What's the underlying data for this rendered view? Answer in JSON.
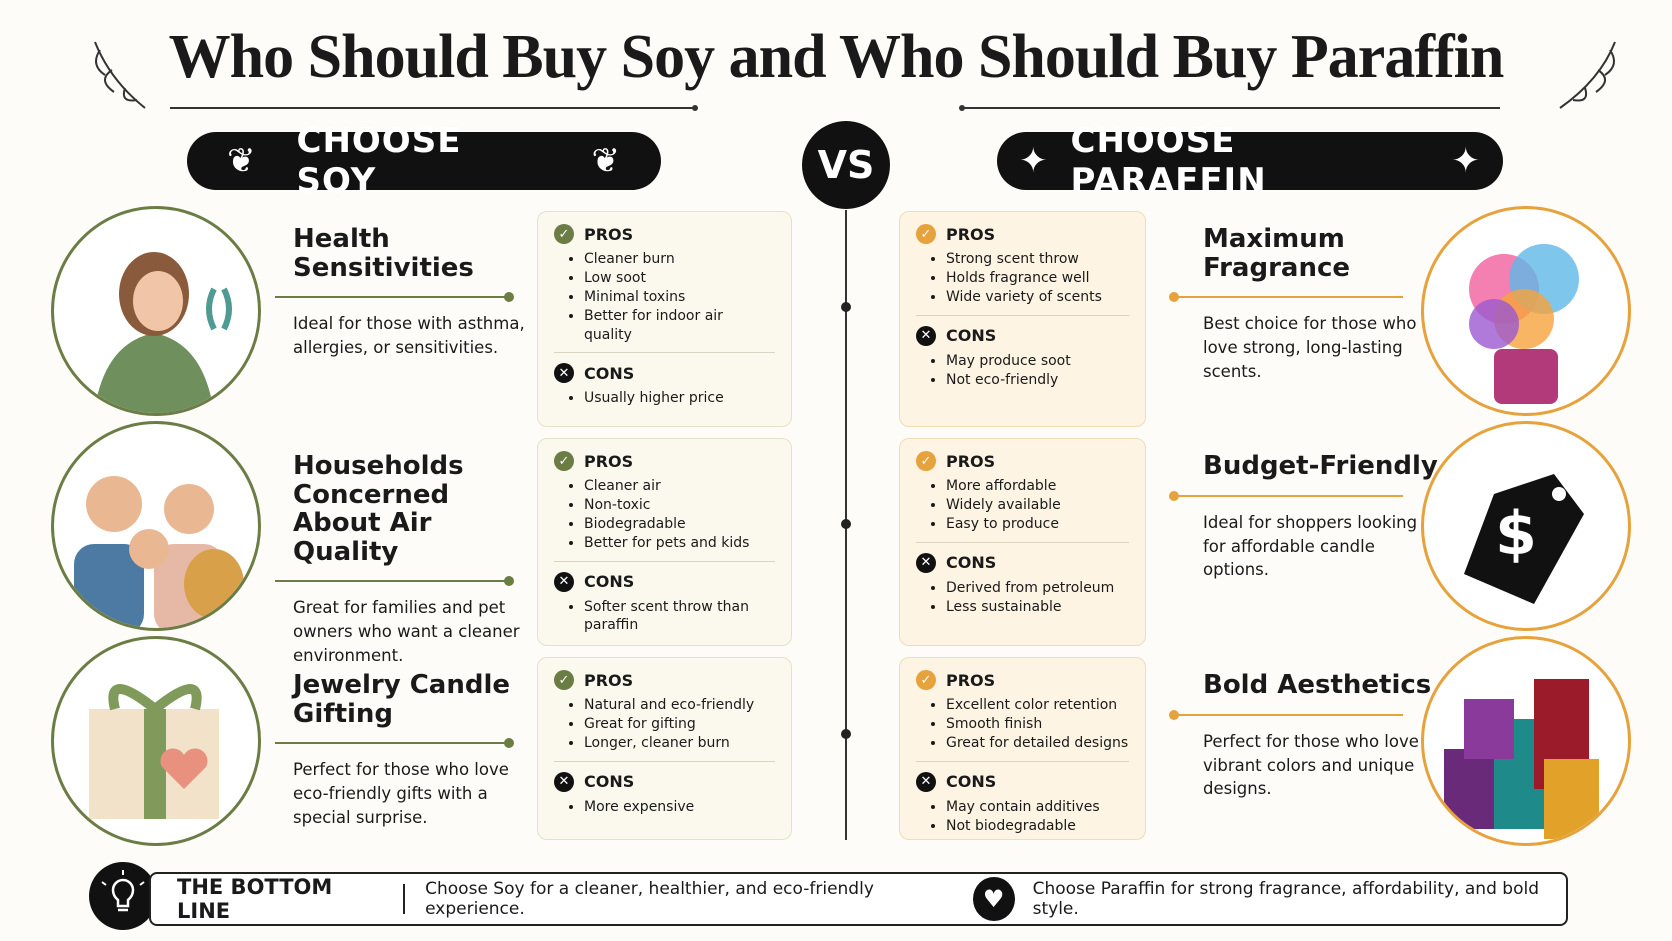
{
  "title": "Who Should Buy Soy and Who Should Buy Paraffin",
  "soy": {
    "header": "CHOOSE SOY",
    "rows": [
      {
        "heading": "Health Sensitivities",
        "description": "Ideal for those with asthma, allergies, or sensitivities.",
        "pros_label": "PROS",
        "pros": [
          "Cleaner burn",
          "Low soot",
          "Minimal toxins",
          "Better for indoor air quality"
        ],
        "cons_label": "CONS",
        "cons": [
          "Usually higher price"
        ]
      },
      {
        "heading": "Households Concerned About Air Quality",
        "description": "Great for families and pet owners who want a cleaner environment.",
        "pros_label": "PROS",
        "pros": [
          "Cleaner air",
          "Non-toxic",
          "Biodegradable",
          "Better for pets and kids"
        ],
        "cons_label": "CONS",
        "cons": [
          "Softer scent throw than paraffin"
        ]
      },
      {
        "heading": "Jewelry Candle Gifting",
        "description": "Perfect for those who love eco-friendly gifts with a special surprise.",
        "pros_label": "PROS",
        "pros": [
          "Natural and eco-friendly",
          "Great for gifting",
          "Longer, cleaner burn"
        ],
        "cons_label": "CONS",
        "cons": [
          "More expensive"
        ]
      }
    ]
  },
  "vs": "VS",
  "paraffin": {
    "header": "CHOOSE PARAFFIN",
    "rows": [
      {
        "heading": "Maximum Fragrance",
        "description": "Best choice for those who love strong, long-lasting scents.",
        "pros_label": "PROS",
        "pros": [
          "Strong scent throw",
          "Holds fragrance well",
          "Wide variety of scents"
        ],
        "cons_label": "CONS",
        "cons": [
          "May produce soot",
          "Not eco-friendly"
        ]
      },
      {
        "heading": "Budget-Friendly",
        "description": "Ideal for shoppers looking for affordable candle options.",
        "pros_label": "PROS",
        "pros": [
          "More affordable",
          "Widely available",
          "Easy to produce"
        ],
        "cons_label": "CONS",
        "cons": [
          "Derived from petroleum",
          "Less sustainable"
        ]
      },
      {
        "heading": "Bold Aesthetics",
        "description": "Perfect for those who love vibrant colors and unique designs.",
        "pros_label": "PROS",
        "pros": [
          "Excellent color retention",
          "Smooth finish",
          "Great for detailed designs"
        ],
        "cons_label": "CONS",
        "cons": [
          "May contain additives",
          "Not biodegradable"
        ]
      }
    ]
  },
  "bottom_line": {
    "label": "THE BOTTOM LINE",
    "soy_text": "Choose Soy for a cleaner, healthier, and eco-friendly experience.",
    "paraffin_text": "Choose Paraffin for strong fragrance, affordability, and bold style."
  }
}
